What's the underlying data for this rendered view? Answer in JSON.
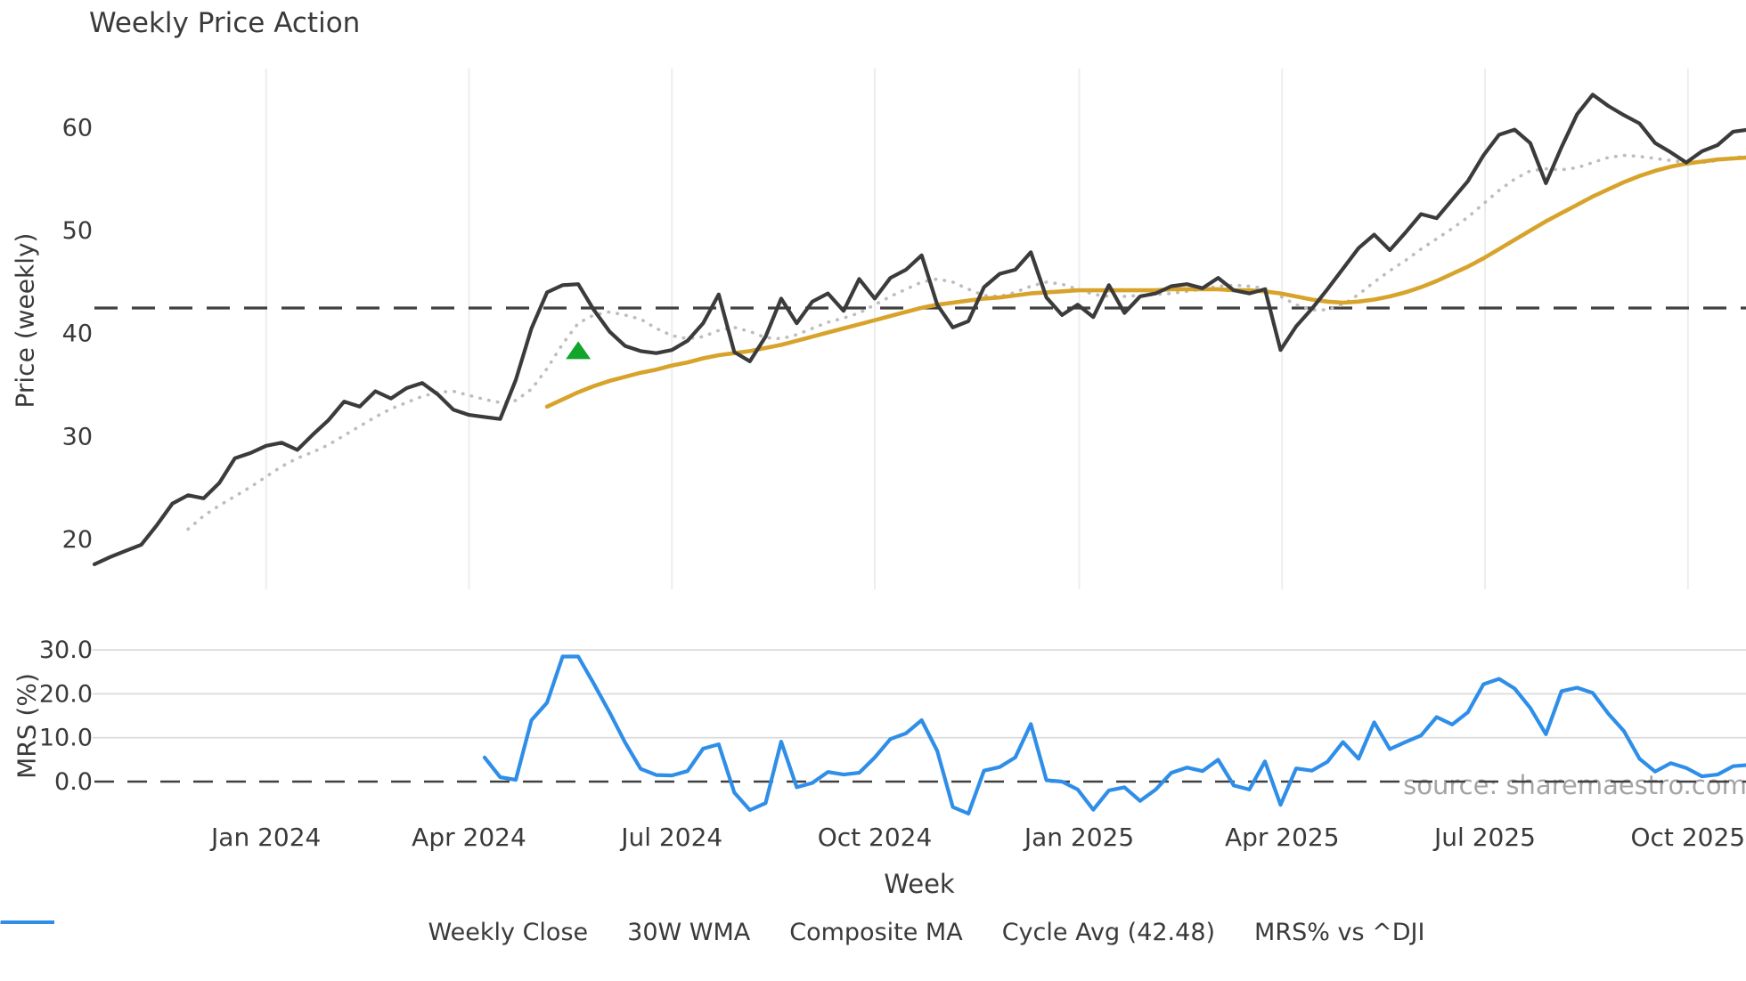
{
  "title": "Weekly Price Action",
  "watermark": "source: sharemaestro.com",
  "colors": {
    "close": "#3b3b3b",
    "wma": "#d7a32b",
    "composite": "#bdbdbd",
    "cycle_avg": "#404040",
    "mrs": "#2e8ee8",
    "marker_green": "#12a52c",
    "grid_vertical": "#eceeec",
    "grid_horizontal": "#d9d9d9",
    "text": "#3a3a3a",
    "watermark_color": "#9b9b9b"
  },
  "legend": [
    {
      "label": "Weekly Close",
      "color": "#3b3b3b",
      "style": "solid"
    },
    {
      "label": "30W WMA",
      "color": "#d7a32b",
      "style": "solid"
    },
    {
      "label": "Composite MA",
      "color": "#bdbdbd",
      "style": "dotted"
    },
    {
      "label": "Cycle Avg (42.48)",
      "color": "#404040",
      "style": "dashed"
    },
    {
      "label": "MRS% vs ^DJI",
      "color": "#2e8ee8",
      "style": "solid"
    }
  ],
  "chart_data": {
    "type": "line",
    "title": "Weekly Price Action",
    "xlabel": "Week",
    "x_axis": {
      "unit": "weeks from first data point (weekly samples)",
      "ticks": [
        {
          "label": "Jan 2024",
          "week": 11
        },
        {
          "label": "Apr 2024",
          "week": 24
        },
        {
          "label": "Jul 2024",
          "week": 37
        },
        {
          "label": "Oct 2024",
          "week": 50
        },
        {
          "label": "Jan 2025",
          "week": 63.1
        },
        {
          "label": "Apr 2025",
          "week": 76.1
        },
        {
          "label": "Jul 2025",
          "week": 89.1
        },
        {
          "label": "Oct 2025",
          "week": 102.1
        }
      ],
      "xlim_weeks": [
        0,
        105.8
      ],
      "grid": "vertical-on-price-panel-only"
    },
    "panels": [
      {
        "name": "price",
        "ylabel": "Price (weekly)",
        "yticks": [
          20,
          30,
          40,
          50,
          60
        ],
        "ylim": [
          15.2,
          65.7
        ],
        "cycle_avg_line": {
          "label": "Cycle Avg (42.48)",
          "value": 42.48,
          "style": "dashed"
        },
        "marker": {
          "shape": "triangle-up",
          "color": "#12a52c",
          "week": 31,
          "price": 38.3
        },
        "series": [
          {
            "name": "Weekly Close",
            "style": "solid",
            "color": "#3b3b3b",
            "start_week": 0,
            "values": [
              17.6,
              18.3,
              18.9,
              19.5,
              21.4,
              23.5,
              24.3,
              24.0,
              25.5,
              27.9,
              28.4,
              29.1,
              29.4,
              28.7,
              30.2,
              31.6,
              33.4,
              32.9,
              34.4,
              33.7,
              34.7,
              35.2,
              34.1,
              32.6,
              32.1,
              31.9,
              31.7,
              35.5,
              40.5,
              44.0,
              44.7,
              44.8,
              42.3,
              40.2,
              38.8,
              38.3,
              38.1,
              38.4,
              39.3,
              41.0,
              43.8,
              38.2,
              37.3,
              39.7,
              43.4,
              41.0,
              43.1,
              43.9,
              42.2,
              45.3,
              43.4,
              45.4,
              46.2,
              47.6,
              42.8,
              40.6,
              41.2,
              44.5,
              45.8,
              46.2,
              47.9,
              43.5,
              41.8,
              42.8,
              41.6,
              44.7,
              42.0,
              43.6,
              43.9,
              44.6,
              44.8,
              44.4,
              45.4,
              44.2,
              43.9,
              44.3,
              38.4,
              40.7,
              42.4,
              44.3,
              46.3,
              48.3,
              49.6,
              48.1,
              49.8,
              51.6,
              51.2,
              53.0,
              54.8,
              57.3,
              59.3,
              59.8,
              58.5,
              54.6,
              58.1,
              61.3,
              63.2,
              62.1,
              61.2,
              60.4,
              58.5,
              57.6,
              56.6,
              57.7,
              58.3,
              59.6,
              59.8
            ]
          },
          {
            "name": "30W WMA",
            "style": "solid",
            "color": "#d7a32b",
            "start_week": 29,
            "values": [
              32.9,
              33.6,
              34.3,
              34.9,
              35.4,
              35.8,
              36.2,
              36.5,
              36.9,
              37.2,
              37.6,
              37.9,
              38.1,
              38.3,
              38.6,
              38.9,
              39.3,
              39.7,
              40.1,
              40.5,
              40.9,
              41.3,
              41.7,
              42.1,
              42.5,
              42.8,
              43.0,
              43.2,
              43.4,
              43.5,
              43.7,
              43.9,
              44.0,
              44.1,
              44.2,
              44.2,
              44.2,
              44.2,
              44.2,
              44.2,
              44.3,
              44.3,
              44.3,
              44.3,
              44.2,
              44.2,
              44.1,
              43.9,
              43.6,
              43.3,
              43.1,
              43.0,
              43.1,
              43.3,
              43.6,
              44.0,
              44.5,
              45.1,
              45.8,
              46.5,
              47.3,
              48.2,
              49.1,
              50.0,
              50.9,
              51.7,
              52.5,
              53.3,
              54.0,
              54.7,
              55.3,
              55.8,
              56.2,
              56.5,
              56.7,
              56.9,
              57.0,
              57.1
            ]
          },
          {
            "name": "Composite MA",
            "style": "dotted",
            "color": "#bdbdbd",
            "start_week": 6,
            "values": [
              21.0,
              22.3,
              23.3,
              24.2,
              25.1,
              26.1,
              27.1,
              27.9,
              28.5,
              29.2,
              30.1,
              31.0,
              31.9,
              32.7,
              33.3,
              33.9,
              34.3,
              34.4,
              34.0,
              33.6,
              33.3,
              33.5,
              34.6,
              36.6,
              39.0,
              41.0,
              41.8,
              42.1,
              41.8,
              41.4,
              40.5,
              39.8,
              39.5,
              39.7,
              40.3,
              40.6,
              40.2,
              39.6,
              39.5,
              39.9,
              40.5,
              41.1,
              41.5,
              42.0,
              42.8,
              43.6,
              44.3,
              45.0,
              45.3,
              45.0,
              44.3,
              43.7,
              43.6,
              44.0,
              44.6,
              45.0,
              44.8,
              44.3,
              43.8,
              43.6,
              43.6,
              43.7,
              43.8,
              43.9,
              44.1,
              44.3,
              44.6,
              44.7,
              44.6,
              44.4,
              43.6,
              42.8,
              42.3,
              42.3,
              42.8,
              43.8,
              45.0,
              46.1,
              47.1,
              48.2,
              49.2,
              50.2,
              51.3,
              52.6,
              53.9,
              55.0,
              55.8,
              56.0,
              55.9,
              56.1,
              56.6,
              57.1,
              57.3,
              57.2,
              57.0,
              56.8,
              56.6,
              56.6,
              56.8,
              57.1,
              57.2
            ]
          }
        ]
      },
      {
        "name": "mrs",
        "ylabel": "MRS (%)",
        "ytick_labels": [
          "0.0",
          "10.0",
          "20.0",
          "30.0"
        ],
        "yticks": [
          0,
          10,
          20,
          30
        ],
        "ylim": [
          -8.5,
          34.7
        ],
        "zero_line": {
          "value": 0,
          "style": "dashed"
        },
        "series": [
          {
            "name": "MRS% vs ^DJI",
            "style": "solid",
            "color": "#2e8ee8",
            "start_week": 25,
            "values": [
              5.5,
              1.0,
              0.4,
              14.0,
              18.0,
              28.5,
              28.5,
              22.3,
              15.8,
              8.9,
              2.9,
              1.5,
              1.4,
              2.4,
              7.5,
              8.5,
              -2.5,
              -6.5,
              -4.9,
              9.1,
              -1.3,
              -0.3,
              2.2,
              1.6,
              2.0,
              5.5,
              9.7,
              11.0,
              14.0,
              7.0,
              -5.8,
              -7.3,
              2.5,
              3.3,
              5.5,
              13.1,
              0.3,
              0.0,
              -1.8,
              -6.4,
              -2.0,
              -1.3,
              -4.4,
              -1.8,
              2.0,
              3.2,
              2.4,
              5.0,
              -0.9,
              -1.8,
              4.6,
              -5.3,
              3.0,
              2.5,
              4.5,
              9.0,
              5.2,
              13.5,
              7.4,
              9.0,
              10.5,
              14.7,
              13.0,
              15.8,
              22.2,
              23.4,
              21.2,
              16.8,
              10.8,
              20.6,
              21.4,
              20.2,
              15.5,
              11.5,
              5.2,
              2.3,
              4.2,
              3.1,
              1.2,
              1.6,
              3.5,
              3.8
            ]
          }
        ]
      }
    ]
  }
}
